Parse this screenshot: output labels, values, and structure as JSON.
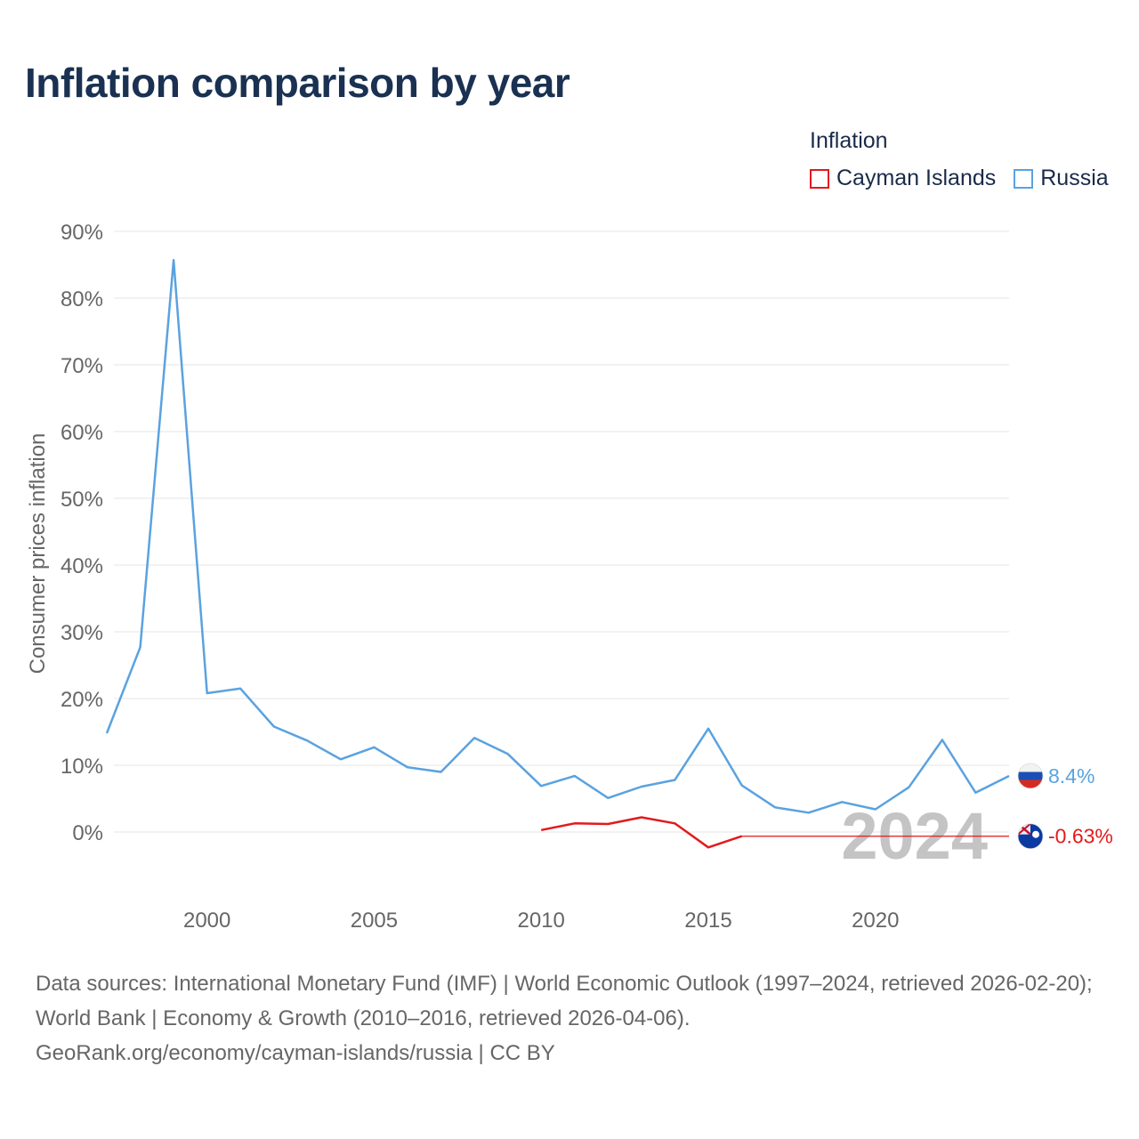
{
  "title": "Inflation comparison by year",
  "legend": {
    "title": "Inflation",
    "items": [
      {
        "label": "Cayman Islands",
        "color": "#e31a1c"
      },
      {
        "label": "Russia",
        "color": "#5aa2e0"
      }
    ]
  },
  "chart_data": {
    "type": "line",
    "title": "Inflation comparison by year",
    "xlabel": "",
    "ylabel": "Consumer prices inflation",
    "xlim": [
      1997,
      2024
    ],
    "ylim": [
      -10,
      90
    ],
    "y_ticks": [
      0,
      10,
      20,
      30,
      40,
      50,
      60,
      70,
      80,
      90
    ],
    "y_tick_labels": [
      "0%",
      "10%",
      "20%",
      "30%",
      "40%",
      "50%",
      "60%",
      "70%",
      "80%",
      "90%"
    ],
    "x_ticks": [
      2000,
      2005,
      2010,
      2015,
      2020
    ],
    "x_tick_labels": [
      "2000",
      "2005",
      "2010",
      "2015",
      "2020"
    ],
    "grid": true,
    "year_label": "2024",
    "series": [
      {
        "name": "Russia",
        "color": "#5aa2e0",
        "x": [
          1997,
          1998,
          1999,
          2000,
          2001,
          2002,
          2003,
          2004,
          2005,
          2006,
          2007,
          2008,
          2009,
          2010,
          2011,
          2012,
          2013,
          2014,
          2015,
          2016,
          2017,
          2018,
          2019,
          2020,
          2021,
          2022,
          2023,
          2024
        ],
        "values": [
          14.8,
          27.7,
          85.7,
          20.8,
          21.5,
          15.8,
          13.7,
          10.9,
          12.7,
          9.7,
          9.0,
          14.1,
          11.7,
          6.9,
          8.4,
          5.1,
          6.8,
          7.8,
          15.5,
          7.0,
          3.7,
          2.9,
          4.5,
          3.4,
          6.7,
          13.8,
          5.9,
          8.4
        ],
        "end_label": "8.4%"
      },
      {
        "name": "Cayman Islands",
        "color": "#e31a1c",
        "x": [
          2010,
          2011,
          2012,
          2013,
          2014,
          2015,
          2016
        ],
        "values": [
          0.3,
          1.3,
          1.2,
          2.2,
          1.3,
          -2.3,
          -0.63
        ],
        "carry_forward_to": 2024,
        "end_label": "-0.63%"
      }
    ]
  },
  "footer": {
    "line1": "Data sources: International Monetary Fund (IMF) | World Economic Outlook (1997–2024, retrieved 2026-02-20); World Bank | Economy & Growth (2010–2016, retrieved 2026-04-06).",
    "line2": "GeoRank.org/economy/cayman-islands/russia | CC BY"
  }
}
